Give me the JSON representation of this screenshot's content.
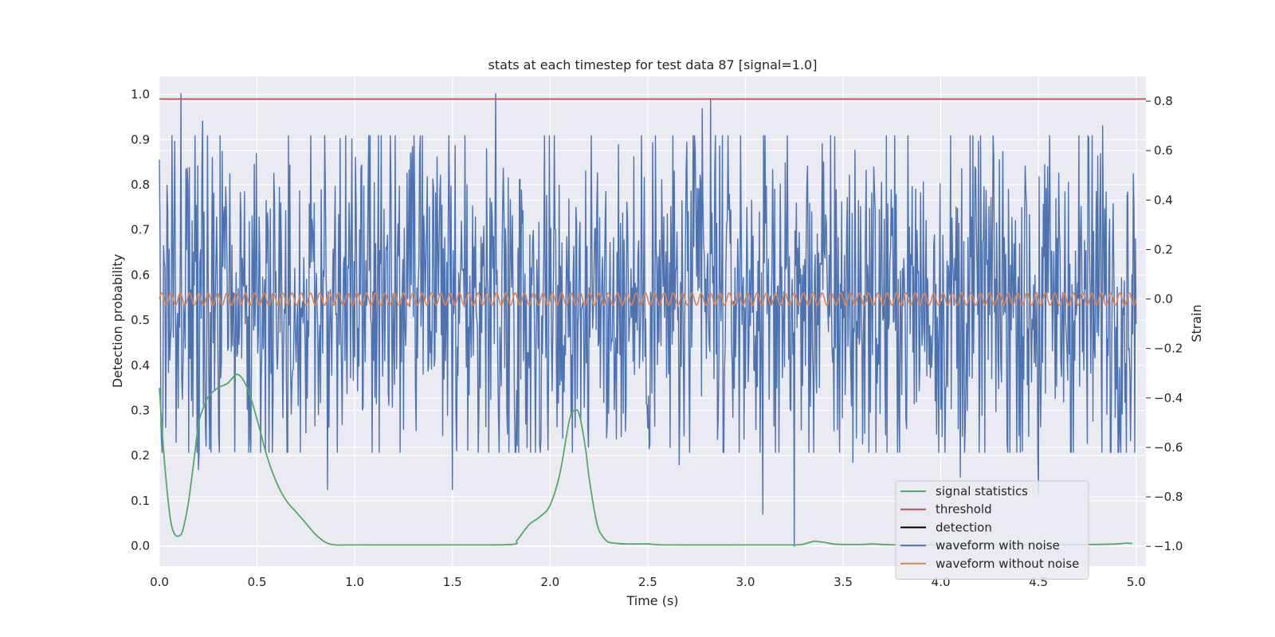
{
  "chart_data": {
    "type": "line",
    "title": "stats at each timestep for test data 87 [signal=1.0]",
    "xlabel": "Time (s)",
    "ylabel_left": "Detection probability",
    "ylabel_right": "Strain",
    "xlim": [
      0.0,
      5.05
    ],
    "ylim_left": [
      -0.045,
      1.04
    ],
    "ylim_right": [
      -1.08,
      0.9
    ],
    "x_ticks": [
      0.0,
      0.5,
      1.0,
      1.5,
      2.0,
      2.5,
      3.0,
      3.5,
      4.0,
      4.5,
      5.0
    ],
    "x_tick_labels": [
      "0.0",
      "0.5",
      "1.0",
      "1.5",
      "2.0",
      "2.5",
      "3.0",
      "3.5",
      "4.0",
      "4.5",
      "5.0"
    ],
    "y_left_ticks": [
      0.0,
      0.1,
      0.2,
      0.3,
      0.4,
      0.5,
      0.6,
      0.7,
      0.8,
      0.9,
      1.0
    ],
    "y_left_tick_labels": [
      "0.0",
      "0.1",
      "0.2",
      "0.3",
      "0.4",
      "0.5",
      "0.6",
      "0.7",
      "0.8",
      "0.9",
      "1.0"
    ],
    "y_right_ticks": [
      -1.0,
      -0.8,
      -0.6,
      -0.4,
      -0.2,
      0.0,
      0.2,
      0.4,
      0.6,
      0.8
    ],
    "y_right_tick_labels": [
      "−1.0",
      "−0.8",
      "−0.6",
      "−0.4",
      "−0.2",
      "0.0",
      "0.2",
      "0.4",
      "0.6",
      "0.8"
    ],
    "grid": true,
    "legend_position": "lower-right",
    "legend": [
      {
        "label": "signal statistics",
        "color": "#55a868"
      },
      {
        "label": "threshold",
        "color": "#c44e52"
      },
      {
        "label": "detection",
        "color": "#000000"
      },
      {
        "label": "waveform with noise",
        "color": "#4c72b0"
      },
      {
        "label": "waveform without noise",
        "color": "#dd8452"
      }
    ],
    "series": [
      {
        "name": "signal statistics",
        "axis": "left",
        "color": "#55a868",
        "x": [
          0.0,
          0.02,
          0.04,
          0.06,
          0.08,
          0.1,
          0.12,
          0.15,
          0.18,
          0.2,
          0.22,
          0.25,
          0.3,
          0.35,
          0.4,
          0.45,
          0.5,
          0.55,
          0.6,
          0.65,
          0.7,
          0.75,
          0.8,
          0.85,
          0.9,
          1.0,
          1.5,
          1.8,
          1.83,
          1.87,
          1.9,
          1.95,
          2.0,
          2.05,
          2.1,
          2.13,
          2.15,
          2.18,
          2.2,
          2.23,
          2.25,
          2.28,
          2.3,
          2.35,
          2.4,
          2.5,
          2.6,
          3.0,
          3.25,
          3.3,
          3.35,
          3.4,
          3.45,
          3.5,
          3.6,
          3.65,
          3.7,
          3.8,
          4.0,
          4.5,
          4.8,
          4.9,
          4.95,
          4.98
        ],
        "y": [
          0.35,
          0.22,
          0.12,
          0.05,
          0.025,
          0.022,
          0.035,
          0.1,
          0.2,
          0.27,
          0.3,
          0.33,
          0.35,
          0.36,
          0.38,
          0.35,
          0.28,
          0.2,
          0.14,
          0.1,
          0.075,
          0.05,
          0.025,
          0.008,
          0.002,
          0.002,
          0.002,
          0.003,
          0.012,
          0.035,
          0.05,
          0.065,
          0.09,
          0.16,
          0.28,
          0.3,
          0.29,
          0.22,
          0.15,
          0.07,
          0.035,
          0.015,
          0.008,
          0.005,
          0.004,
          0.004,
          0.002,
          0.002,
          0.002,
          0.004,
          0.01,
          0.008,
          0.004,
          0.003,
          0.003,
          0.004,
          0.003,
          0.002,
          0.002,
          0.002,
          0.003,
          0.004,
          0.006,
          0.005
        ]
      },
      {
        "name": "threshold",
        "axis": "left",
        "color": "#c44e52",
        "x": [
          0.0,
          5.05
        ],
        "y": [
          0.99,
          0.99
        ]
      },
      {
        "name": "waveform with noise",
        "axis": "right",
        "color": "#4c72b0",
        "samples": 1400,
        "x_range": [
          0.0,
          5.0
        ],
        "y_center": 0.0,
        "y_typical_range": [
          -0.4,
          0.4
        ],
        "peaks": [
          {
            "x": 0.11,
            "y": 0.83
          },
          {
            "x": 1.72,
            "y": 0.83
          },
          {
            "x": 2.82,
            "y": 0.81
          },
          {
            "x": 2.78,
            "y": 0.77
          },
          {
            "x": 0.22,
            "y": 0.72
          },
          {
            "x": 4.83,
            "y": 0.7
          },
          {
            "x": 3.25,
            "y": -1.0
          },
          {
            "x": 3.09,
            "y": -0.87
          },
          {
            "x": 0.86,
            "y": -0.77
          },
          {
            "x": 1.5,
            "y": -0.77
          },
          {
            "x": 4.5,
            "y": -0.79
          },
          {
            "x": 0.2,
            "y": -0.69
          },
          {
            "x": 4.1,
            "y": -0.72
          },
          {
            "x": 2.66,
            "y": -0.67
          },
          {
            "x": 3.55,
            "y": -0.66
          }
        ]
      },
      {
        "name": "waveform without noise",
        "axis": "right",
        "color": "#dd8452",
        "x_range": [
          0.0,
          5.0
        ],
        "amplitude": 0.025,
        "cycles": 105
      }
    ]
  }
}
